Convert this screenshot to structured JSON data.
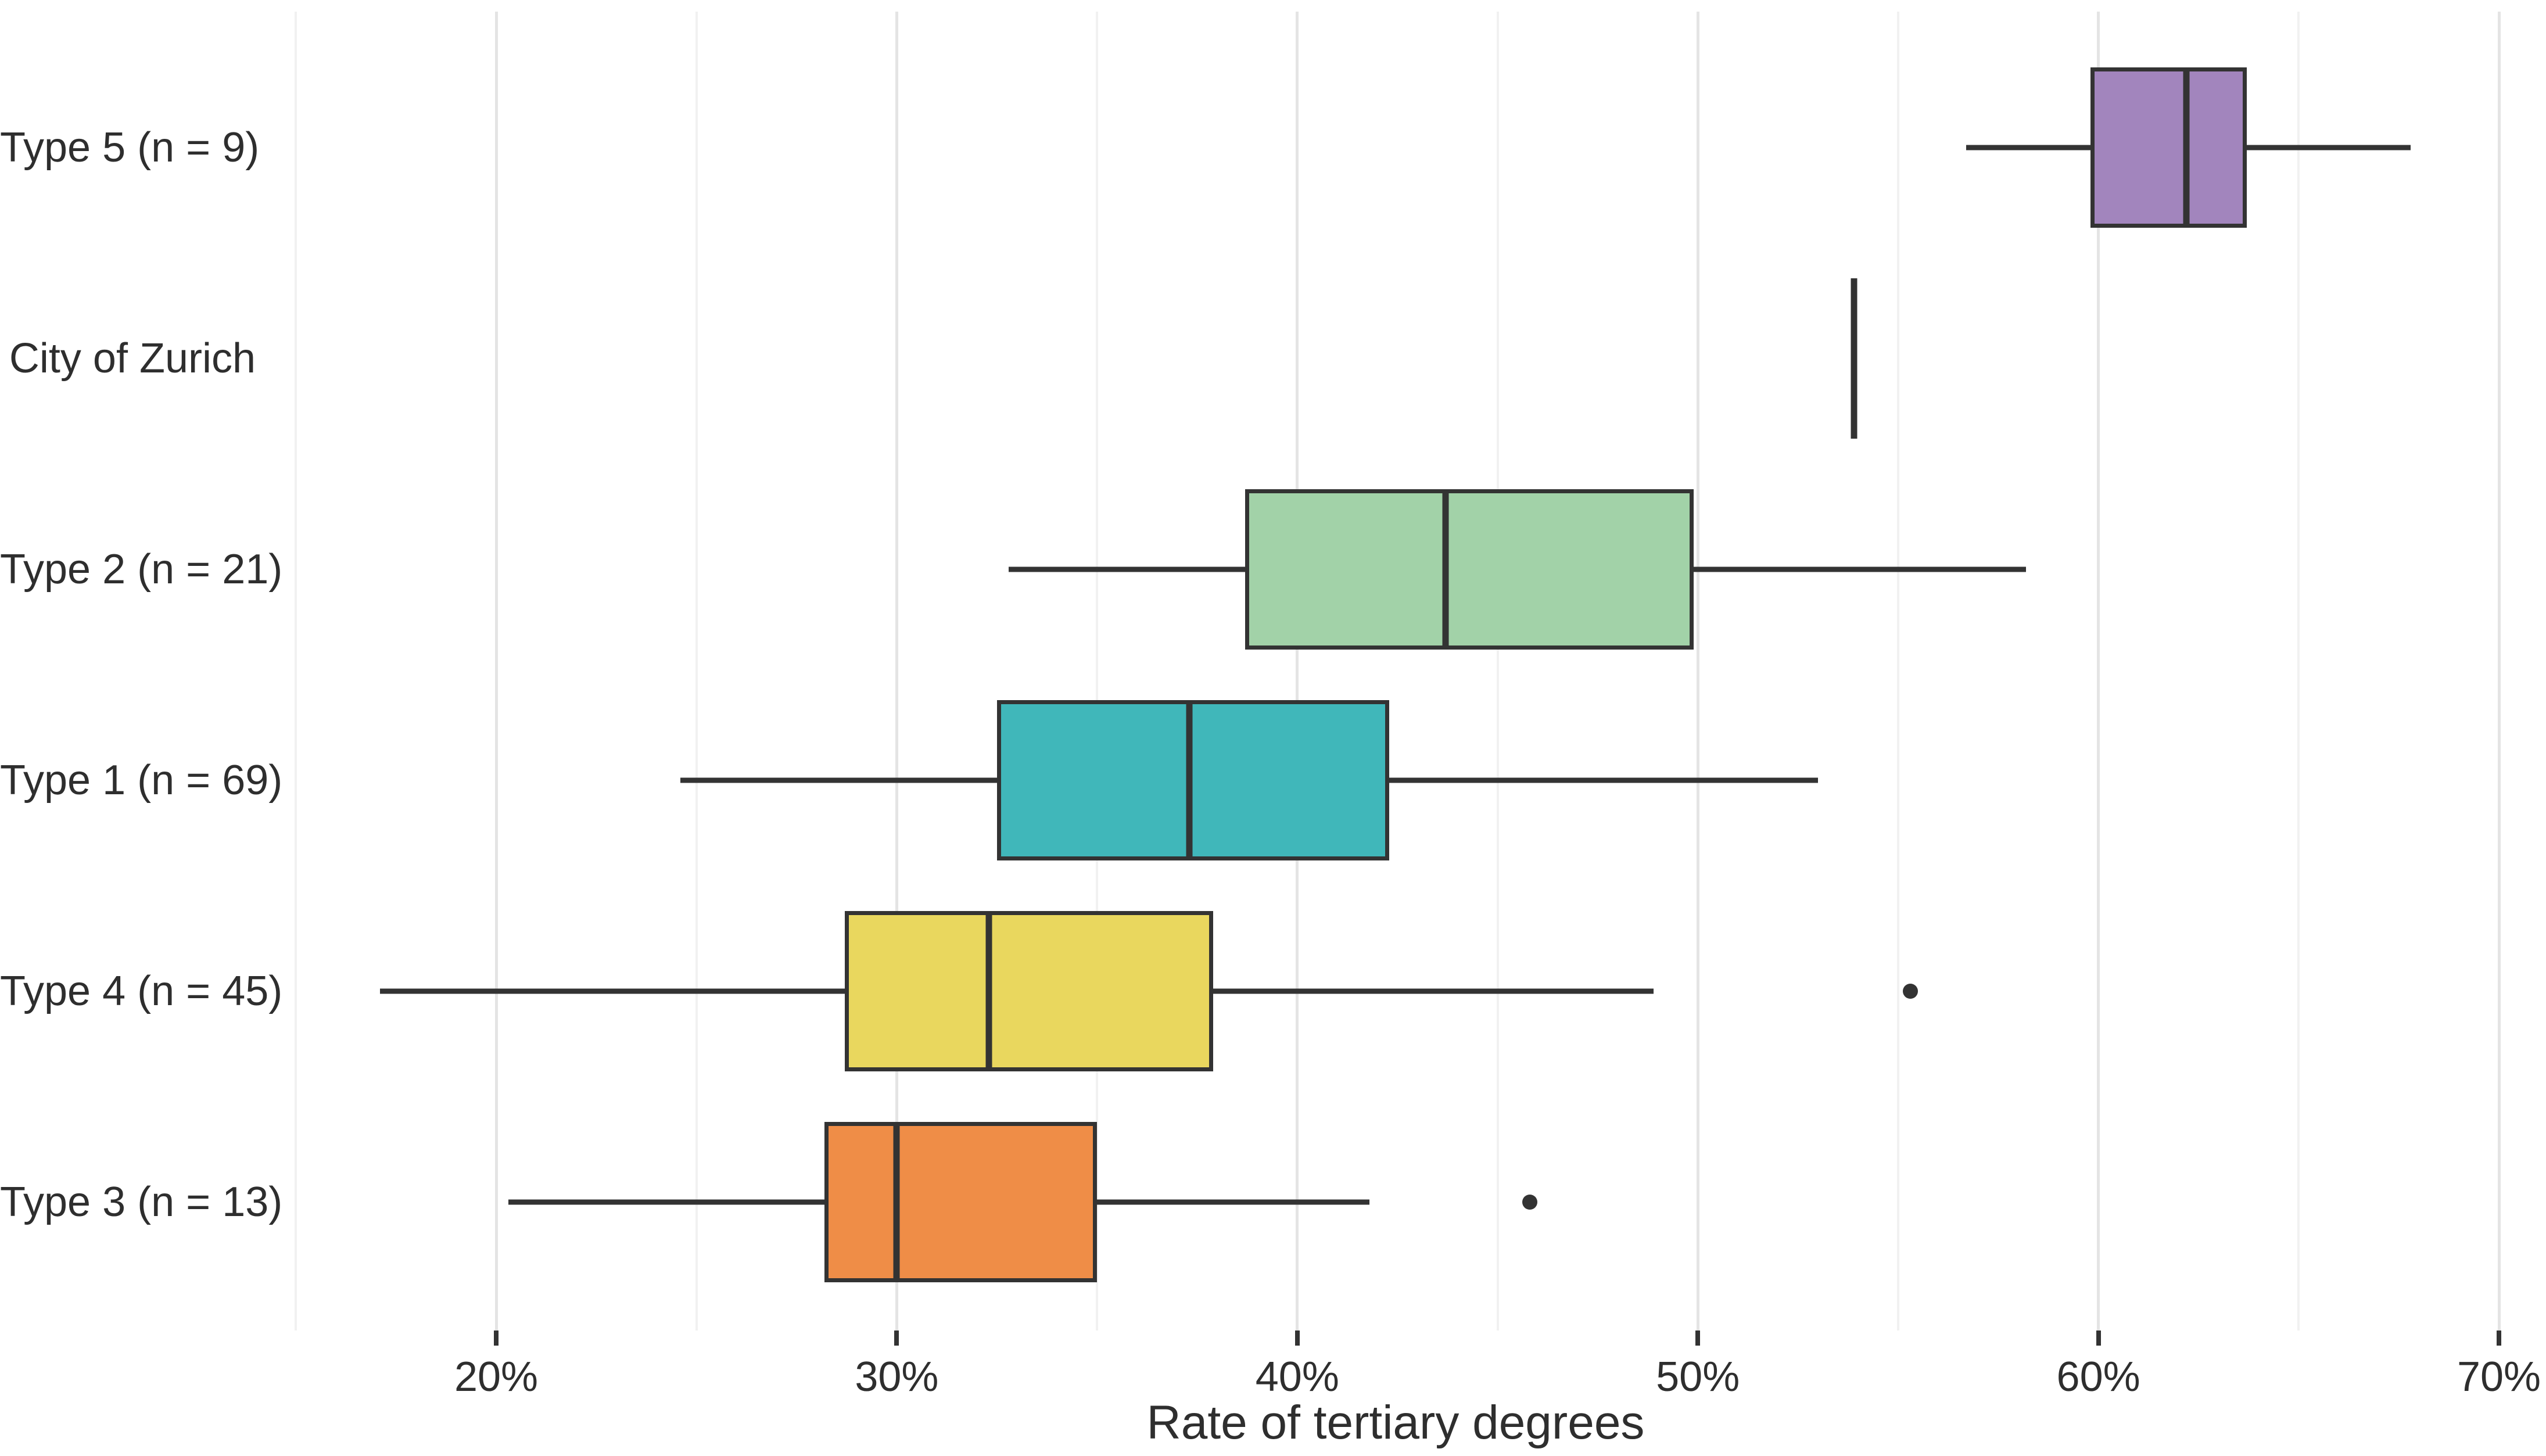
{
  "chart_data": {
    "type": "boxplot",
    "orientation": "horizontal",
    "title": "",
    "xlabel": "Rate of tertiary degrees",
    "ylabel": "",
    "x_unit": "%",
    "x_axis": {
      "tick_labels": [
        "20%",
        "30%",
        "40%",
        "50%",
        "60%",
        "70%"
      ],
      "tick_values": [
        20,
        30,
        40,
        50,
        60,
        70
      ],
      "minor_tick_values": [
        15,
        25,
        35,
        45,
        55,
        65
      ],
      "range": [
        14.6,
        70.9
      ],
      "grid": "on"
    },
    "categories_top_to_bottom": [
      "Type 5 (n = 9)",
      "City of Zurich",
      "Type 2 (n = 21)",
      "Type 1 (n = 69)",
      "Type 4 (n = 45)",
      "Type 3 (n = 13)"
    ],
    "series": [
      {
        "label": "Type 5 (n = 9)",
        "fill": "#a285bd",
        "whisker_low": 56.7,
        "q1": 59.8,
        "median": 62.2,
        "q3": 63.7,
        "whisker_high": 67.8,
        "outliers": []
      },
      {
        "label": "City of Zurich",
        "fill": null,
        "single_value": 53.9,
        "outliers": []
      },
      {
        "label": "Type 2 (n = 21)",
        "fill": "#a2d2a8",
        "whisker_low": 32.8,
        "q1": 38.7,
        "median": 43.7,
        "q3": 49.9,
        "whisker_high": 58.2,
        "outliers": []
      },
      {
        "label": "Type 1 (n = 69)",
        "fill": "#40b7ba",
        "whisker_low": 24.6,
        "q1": 32.5,
        "median": 37.3,
        "q3": 42.3,
        "whisker_high": 53.0,
        "outliers": []
      },
      {
        "label": "Type 4 (n = 45)",
        "fill": "#e9d75e",
        "whisker_low": 17.1,
        "q1": 28.7,
        "median": 32.3,
        "q3": 37.9,
        "whisker_high": 48.9,
        "outliers": [
          55.3
        ]
      },
      {
        "label": "Type 3 (n = 13)",
        "fill": "#ef8d47",
        "whisker_low": 20.3,
        "q1": 28.2,
        "median": 30.0,
        "q3": 35.0,
        "whisker_high": 41.8,
        "outliers": [
          45.8
        ]
      }
    ],
    "colors": {
      "stroke": "#333333",
      "grid_major": "#e4e4e4",
      "grid_minor": "#f1f1f1",
      "text": "#2e2e2e",
      "background": "#ffffff"
    }
  }
}
